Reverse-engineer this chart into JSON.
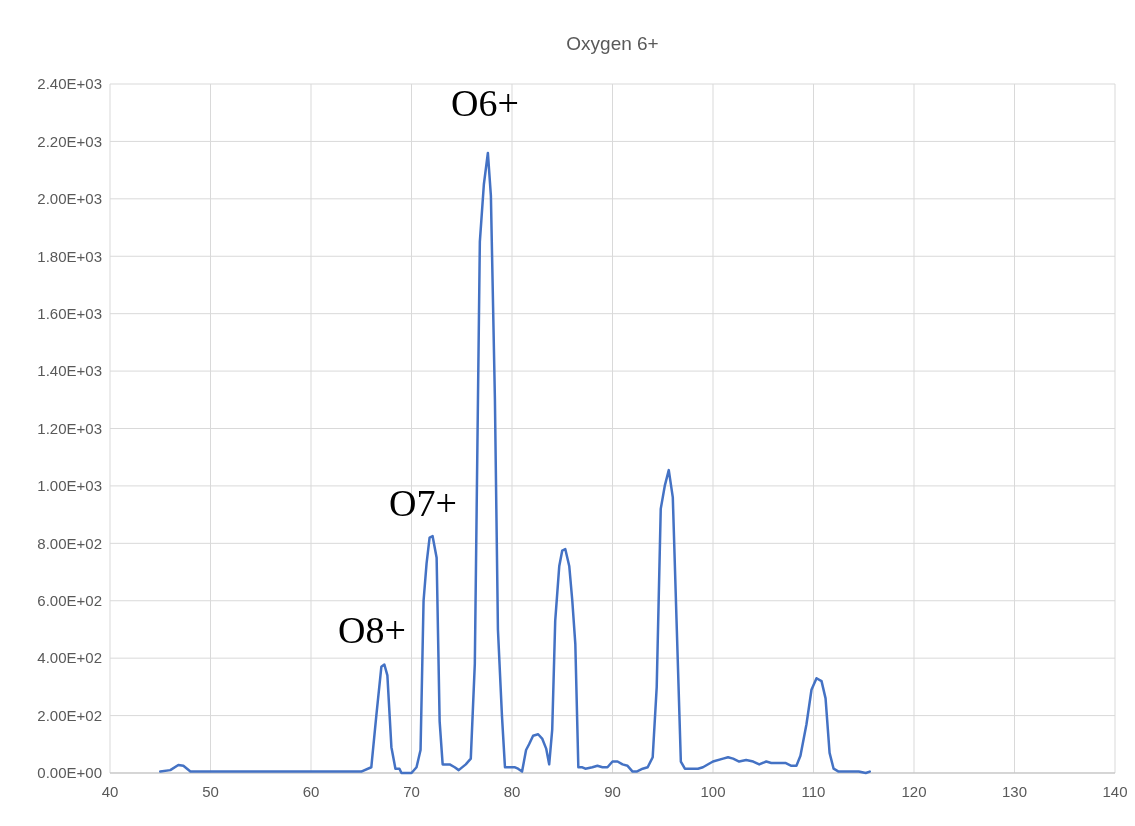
{
  "chart_data": {
    "type": "line",
    "title": "Oxygen 6+",
    "grid": true,
    "marker": "none",
    "line_style": "solid",
    "xlim": [
      40,
      140
    ],
    "xticks": [
      40,
      50,
      60,
      70,
      80,
      90,
      100,
      110,
      120,
      130,
      140
    ],
    "ylim": [
      0,
      2400
    ],
    "yticks": [
      {
        "value": 0,
        "label": "0.00E+00"
      },
      {
        "value": 200,
        "label": "2.00E+02"
      },
      {
        "value": 400,
        "label": "4.00E+02"
      },
      {
        "value": 600,
        "label": "6.00E+02"
      },
      {
        "value": 800,
        "label": "8.00E+02"
      },
      {
        "value": 1000,
        "label": "1.00E+03"
      },
      {
        "value": 1200,
        "label": "1.20E+03"
      },
      {
        "value": 1400,
        "label": "1.40E+03"
      },
      {
        "value": 1600,
        "label": "1.60E+03"
      },
      {
        "value": 1800,
        "label": "1.80E+03"
      },
      {
        "value": 2000,
        "label": "2.00E+03"
      },
      {
        "value": 2200,
        "label": "2.20E+03"
      },
      {
        "value": 2400,
        "label": "2.40E+03"
      }
    ],
    "annotations": [
      "O6+",
      "O7+",
      "O8+"
    ],
    "series": [
      {
        "color": "#4472c4",
        "x": [
          45,
          46,
          46.8,
          47.3,
          48,
          50,
          52,
          55,
          58,
          60,
          62,
          65,
          66,
          66.5,
          67,
          67.3,
          67.6,
          68,
          68.4,
          68.8,
          69,
          70,
          70.5,
          70.9,
          71.2,
          71.5,
          71.8,
          72.1,
          72.5,
          72.8,
          73.1,
          73.8,
          74.3,
          74.7,
          75.4,
          75.9,
          76.3,
          76.8,
          77.2,
          77.6,
          77.9,
          78.3,
          78.6,
          79,
          79.3,
          80.3,
          80.6,
          81,
          81.4,
          81.7,
          82.1,
          82.6,
          83,
          83.4,
          83.7,
          84,
          84.3,
          84.7,
          85,
          85.3,
          85.7,
          86,
          86.3,
          86.6,
          87,
          87.3,
          88,
          88.5,
          89,
          89.5,
          90,
          90.5,
          91,
          91.5,
          92,
          92.4,
          93,
          93.5,
          94,
          94.4,
          94.8,
          95.2,
          95.6,
          96,
          96.4,
          96.8,
          97.2,
          97.8,
          98.5,
          99,
          100,
          101,
          101.5,
          102,
          102.6,
          103.3,
          104,
          104.6,
          105.3,
          105.8,
          106.5,
          107.2,
          107.8,
          108.3,
          108.7,
          109.3,
          109.8,
          110.3,
          110.8,
          111.2,
          111.6,
          112,
          112.5,
          113.5,
          114.5,
          115.2,
          115.6
        ],
        "values": [
          5,
          10,
          28,
          25,
          5,
          5,
          5,
          5,
          5,
          5,
          5,
          5,
          20,
          200,
          370,
          378,
          340,
          90,
          15,
          15,
          0,
          0,
          20,
          80,
          600,
          730,
          820,
          825,
          750,
          180,
          30,
          30,
          20,
          10,
          30,
          50,
          380,
          1850,
          2050,
          2160,
          2010,
          1300,
          500,
          200,
          20,
          20,
          15,
          5,
          80,
          100,
          130,
          135,
          120,
          85,
          30,
          150,
          530,
          720,
          775,
          780,
          720,
          600,
          450,
          20,
          20,
          15,
          20,
          25,
          20,
          20,
          40,
          40,
          30,
          25,
          5,
          5,
          15,
          20,
          55,
          300,
          920,
          1000,
          1055,
          960,
          500,
          40,
          15,
          15,
          15,
          20,
          40,
          50,
          55,
          50,
          40,
          45,
          40,
          30,
          40,
          35,
          35,
          35,
          25,
          25,
          60,
          170,
          290,
          330,
          320,
          260,
          70,
          15,
          5,
          5,
          5,
          0,
          5
        ]
      }
    ]
  }
}
